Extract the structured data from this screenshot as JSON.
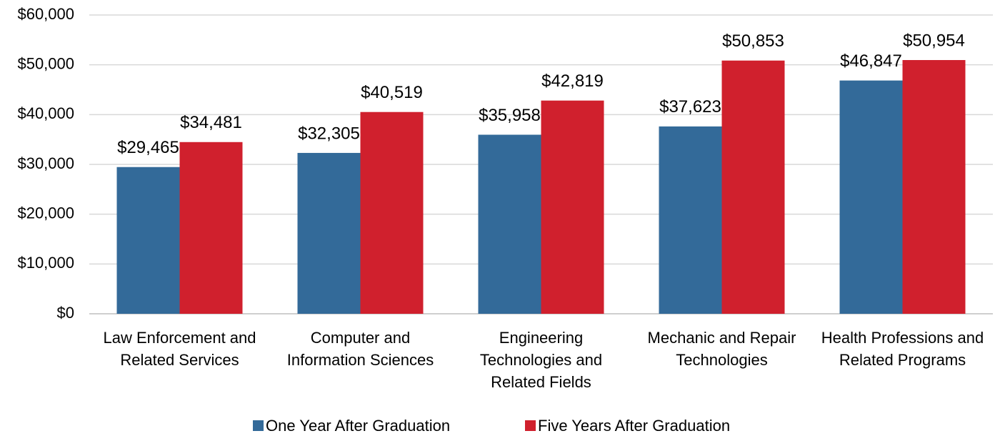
{
  "chart_data": {
    "type": "bar",
    "categories": [
      "Law Enforcement and Related Services",
      "Computer and Information Sciences",
      "Engineering Technologies and Related Fields",
      "Mechanic and Repair Technologies",
      "Health Professions and Related Programs"
    ],
    "series": [
      {
        "name": "One Year After Graduation",
        "color": "#336a99",
        "values": [
          29465,
          32305,
          35958,
          37623,
          46847
        ],
        "value_labels": [
          "$29,465",
          "$32,305",
          "$35,958",
          "$37,623",
          "$46,847"
        ]
      },
      {
        "name": "Five Years After Graduation",
        "color": "#d0202d",
        "values": [
          34481,
          40519,
          42819,
          50853,
          50954
        ],
        "value_labels": [
          "$34,481",
          "$40,519",
          "$42,819",
          "$50,853",
          "$50,954"
        ]
      }
    ],
    "ylim": [
      0,
      60000
    ],
    "yticks": [
      {
        "value": 0,
        "label": "$0"
      },
      {
        "value": 10000,
        "label": "$10,000"
      },
      {
        "value": 20000,
        "label": "$20,000"
      },
      {
        "value": 30000,
        "label": "$30,000"
      },
      {
        "value": 40000,
        "label": "$40,000"
      },
      {
        "value": 50000,
        "label": "$50,000"
      },
      {
        "value": 60000,
        "label": "$60,000"
      }
    ],
    "grid": true,
    "legend": "bottom"
  }
}
